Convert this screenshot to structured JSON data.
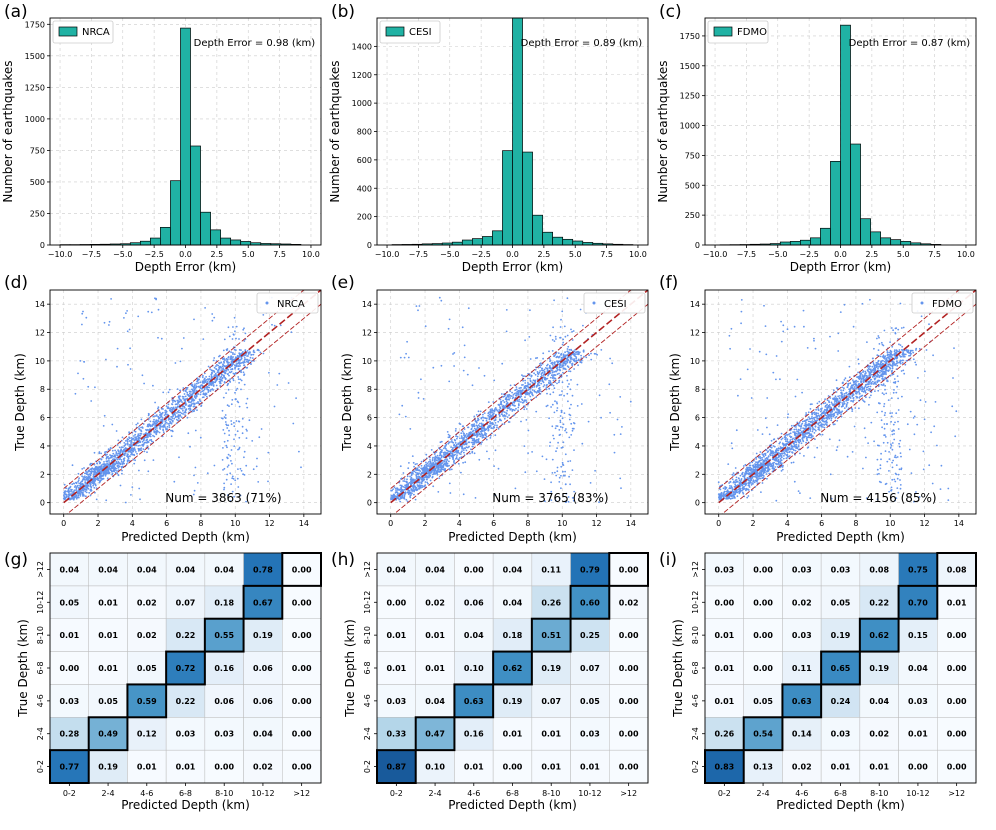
{
  "chart_data": [
    {
      "panel": "(a)",
      "type": "bar",
      "legend": "NRCA",
      "annotation": "Depth Error = 0.98 (km)",
      "xlabel": "Depth Error (km)",
      "ylabel": "Number of earthquakes",
      "xlim": [
        -10.8,
        10.8
      ],
      "ylim": [
        0,
        1800
      ],
      "xticks": [
        -10.0,
        -7.5,
        -5.0,
        -2.5,
        0.0,
        2.5,
        5.0,
        7.5,
        10.0
      ],
      "xtick_labels": [
        "−10.0",
        "−7.5",
        "−5.0",
        "−2.5",
        "0.0",
        "2.5",
        "5.0",
        "7.5",
        "10.0"
      ],
      "yticks": [
        0,
        250,
        500,
        750,
        1000,
        1250,
        1500,
        1750
      ],
      "ytick_labels": [
        "0",
        "250",
        "500",
        "750",
        "1000",
        "1250",
        "1500",
        "1750"
      ],
      "bin_width": 0.8,
      "bins_left": [
        -10.0,
        -9.2,
        -8.4,
        -7.6,
        -6.8,
        -6.0,
        -5.2,
        -4.4,
        -3.6,
        -2.8,
        -2.0,
        -1.2,
        -0.4,
        0.4,
        1.2,
        2.0,
        2.8,
        3.6,
        4.4,
        5.2,
        6.0,
        6.8,
        7.6,
        8.4
      ],
      "values": [
        3,
        3,
        4,
        5,
        6,
        8,
        10,
        18,
        30,
        55,
        140,
        510,
        1720,
        785,
        260,
        120,
        55,
        40,
        28,
        18,
        12,
        10,
        8,
        5
      ]
    },
    {
      "panel": "(b)",
      "type": "bar",
      "legend": "CESI",
      "annotation": "Depth Error = 0.89 (km)",
      "xlabel": "Depth Error (km)",
      "ylabel": "Number of earthquakes",
      "xlim": [
        -10.8,
        10.8
      ],
      "ylim": [
        0,
        1600
      ],
      "xticks": [
        -10.0,
        -7.5,
        -5.0,
        -2.5,
        0.0,
        2.5,
        5.0,
        7.5,
        10.0
      ],
      "xtick_labels": [
        "−10.0",
        "−7.5",
        "−5.0",
        "−2.5",
        "0.0",
        "2.5",
        "5.0",
        "7.5",
        "10.0"
      ],
      "yticks": [
        0,
        200,
        400,
        600,
        800,
        1000,
        1200,
        1400
      ],
      "ytick_labels": [
        "0",
        "200",
        "400",
        "600",
        "800",
        "1000",
        "1200",
        "1400"
      ],
      "bin_width": 0.8,
      "bins_left": [
        -9.6,
        -8.8,
        -8.0,
        -7.2,
        -6.4,
        -5.6,
        -4.8,
        -4.0,
        -3.2,
        -2.4,
        -1.6,
        -0.8,
        0.0,
        0.8,
        1.6,
        2.4,
        3.2,
        4.0,
        4.8,
        5.6,
        6.4,
        7.2,
        8.0,
        8.8
      ],
      "values": [
        3,
        4,
        5,
        8,
        10,
        14,
        20,
        35,
        45,
        60,
        100,
        665,
        1600,
        655,
        210,
        90,
        55,
        40,
        28,
        18,
        12,
        8,
        5,
        3
      ]
    },
    {
      "panel": "(c)",
      "type": "bar",
      "legend": "FDMO",
      "annotation": "Depth Error = 0.87 (km)",
      "xlabel": "Depth Error (km)",
      "ylabel": "Number of earthquakes",
      "xlim": [
        -10.8,
        10.8
      ],
      "ylim": [
        0,
        1900
      ],
      "xticks": [
        -10.0,
        -7.5,
        -5.0,
        -2.5,
        0.0,
        2.5,
        5.0,
        7.5,
        10.0
      ],
      "xtick_labels": [
        "−10.0",
        "−7.5",
        "−5.0",
        "−2.5",
        "0.0",
        "2.5",
        "5.0",
        "7.5",
        "10.0"
      ],
      "yticks": [
        0,
        250,
        500,
        750,
        1000,
        1250,
        1500,
        1750
      ],
      "ytick_labels": [
        "0",
        "250",
        "500",
        "750",
        "1000",
        "1250",
        "1500",
        "1750"
      ],
      "bin_width": 0.8,
      "bins_left": [
        -9.6,
        -8.8,
        -8.0,
        -7.2,
        -6.4,
        -5.6,
        -4.8,
        -4.0,
        -3.2,
        -2.4,
        -1.6,
        -0.8,
        0.0,
        0.8,
        1.6,
        2.4,
        3.2,
        4.0,
        4.8,
        5.6,
        6.4,
        7.2
      ],
      "values": [
        2,
        3,
        4,
        6,
        8,
        12,
        25,
        30,
        40,
        60,
        140,
        700,
        1840,
        845,
        220,
        110,
        60,
        45,
        30,
        18,
        10,
        5
      ]
    },
    {
      "panel": "(d)",
      "type": "scatter",
      "legend": "NRCA",
      "annotation": "Num = 3863 (71%)",
      "xlabel": "Predicted Depth (km)",
      "ylabel": "True Depth (km)",
      "xlim": [
        -0.8,
        15
      ],
      "ylim": [
        -0.8,
        15
      ],
      "ticks": [
        0,
        2,
        4,
        6,
        8,
        10,
        12,
        14
      ],
      "tick_labels": [
        "0",
        "2",
        "4",
        "6",
        "8",
        "10",
        "12",
        "14"
      ],
      "reference_lines": [
        {
          "offset": 0
        },
        {
          "offset": 1
        },
        {
          "offset": -1
        }
      ],
      "point_count": 3863,
      "seed": 11
    },
    {
      "panel": "(e)",
      "type": "scatter",
      "legend": "CESI",
      "annotation": "Num = 3765 (83%)",
      "xlabel": "Predicted Depth (km)",
      "ylabel": "True Depth (km)",
      "xlim": [
        -0.8,
        15
      ],
      "ylim": [
        -0.8,
        15
      ],
      "ticks": [
        0,
        2,
        4,
        6,
        8,
        10,
        12,
        14
      ],
      "tick_labels": [
        "0",
        "2",
        "4",
        "6",
        "8",
        "10",
        "12",
        "14"
      ],
      "reference_lines": [
        {
          "offset": 0
        },
        {
          "offset": 1
        },
        {
          "offset": -1
        }
      ],
      "point_count": 3765,
      "seed": 23
    },
    {
      "panel": "(f)",
      "type": "scatter",
      "legend": "FDMO",
      "annotation": "Num = 4156 (85%)",
      "xlabel": "Predicted Depth (km)",
      "ylabel": "True Depth (km)",
      "xlim": [
        -0.8,
        15
      ],
      "ylim": [
        -0.8,
        15
      ],
      "ticks": [
        0,
        2,
        4,
        6,
        8,
        10,
        12,
        14
      ],
      "tick_labels": [
        "0",
        "2",
        "4",
        "6",
        "8",
        "10",
        "12",
        "14"
      ],
      "reference_lines": [
        {
          "offset": 0
        },
        {
          "offset": 1
        },
        {
          "offset": -1
        }
      ],
      "point_count": 4156,
      "seed": 37
    },
    {
      "panel": "(g)",
      "type": "heatmap",
      "xlabel": "Predicted Depth (km)",
      "ylabel": "True Depth (km)",
      "categories": [
        "0-2",
        "2-4",
        "4-6",
        "6-8",
        "8-10",
        "10-12",
        ">12"
      ],
      "matrix": [
        [
          "0.77",
          "0.19",
          "0.01",
          "0.01",
          "0.00",
          "0.02",
          "0.00"
        ],
        [
          "0.28",
          "0.49",
          "0.12",
          "0.03",
          "0.03",
          "0.04",
          "0.00"
        ],
        [
          "0.03",
          "0.05",
          "0.59",
          "0.22",
          "0.06",
          "0.06",
          "0.00"
        ],
        [
          "0.00",
          "0.01",
          "0.05",
          "0.72",
          "0.16",
          "0.06",
          "0.00"
        ],
        [
          "0.01",
          "0.01",
          "0.02",
          "0.22",
          "0.55",
          "0.19",
          "0.00"
        ],
        [
          "0.05",
          "0.01",
          "0.02",
          "0.07",
          "0.18",
          "0.67",
          "0.00"
        ],
        [
          "0.04",
          "0.04",
          "0.04",
          "0.04",
          "0.04",
          "0.78",
          "0.00"
        ]
      ]
    },
    {
      "panel": "(h)",
      "type": "heatmap",
      "xlabel": "Predicted Depth (km)",
      "ylabel": "True Depth (km)",
      "categories": [
        "0-2",
        "2-4",
        "4-6",
        "6-8",
        "8-10",
        "10-12",
        ">12"
      ],
      "matrix": [
        [
          "0.87",
          "0.10",
          "0.01",
          "0.00",
          "0.01",
          "0.01",
          "0.00"
        ],
        [
          "0.33",
          "0.47",
          "0.16",
          "0.01",
          "0.01",
          "0.03",
          "0.00"
        ],
        [
          "0.03",
          "0.04",
          "0.63",
          "0.19",
          "0.07",
          "0.05",
          "0.00"
        ],
        [
          "0.01",
          "0.01",
          "0.10",
          "0.62",
          "0.19",
          "0.07",
          "0.00"
        ],
        [
          "0.01",
          "0.01",
          "0.04",
          "0.18",
          "0.51",
          "0.25",
          "0.00"
        ],
        [
          "0.00",
          "0.02",
          "0.06",
          "0.04",
          "0.26",
          "0.60",
          "0.02"
        ],
        [
          "0.04",
          "0.04",
          "0.00",
          "0.04",
          "0.11",
          "0.79",
          "0.00"
        ]
      ]
    },
    {
      "panel": "(i)",
      "type": "heatmap",
      "xlabel": "Predicted Depth (km)",
      "ylabel": "True Depth (km)",
      "categories": [
        "0-2",
        "2-4",
        "4-6",
        "6-8",
        "8-10",
        "10-12",
        ">12"
      ],
      "matrix": [
        [
          "0.83",
          "0.13",
          "0.02",
          "0.01",
          "0.01",
          "0.00",
          "0.00"
        ],
        [
          "0.26",
          "0.54",
          "0.14",
          "0.03",
          "0.02",
          "0.01",
          "0.00"
        ],
        [
          "0.01",
          "0.05",
          "0.63",
          "0.24",
          "0.04",
          "0.03",
          "0.00"
        ],
        [
          "0.01",
          "0.00",
          "0.11",
          "0.65",
          "0.19",
          "0.04",
          "0.00"
        ],
        [
          "0.01",
          "0.00",
          "0.03",
          "0.19",
          "0.62",
          "0.15",
          "0.00"
        ],
        [
          "0.00",
          "0.00",
          "0.02",
          "0.05",
          "0.22",
          "0.70",
          "0.01"
        ],
        [
          "0.03",
          "0.00",
          "0.03",
          "0.03",
          "0.08",
          "0.75",
          "0.08"
        ]
      ]
    }
  ],
  "colors": {
    "hist_fill": "#20b2a4",
    "hist_edge": "#000000",
    "scatter_point": "#6495ed",
    "ref_line": "#b22222",
    "heat_low": "#f7fbff",
    "heat_high": "#08306b",
    "grid": "#cccccc"
  }
}
